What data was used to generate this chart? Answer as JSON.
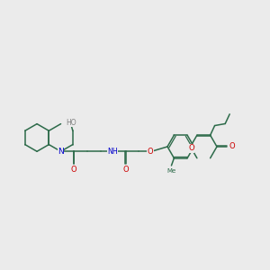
{
  "bg_color": "#ebebeb",
  "bond_color": "#2d6b4a",
  "N_color": "#0000cc",
  "O_color": "#cc0000",
  "H_color": "#808080",
  "lw": 1.1,
  "dbo": 0.018,
  "figsize": [
    3.0,
    3.0
  ],
  "dpi": 100,
  "xlim": [
    0,
    10
  ],
  "ylim": [
    2,
    8.5
  ]
}
